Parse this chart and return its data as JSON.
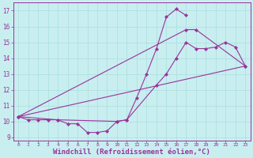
{
  "bg_color": "#c8eef0",
  "grid_color": "#aadddd",
  "line_color": "#993399",
  "curve1_x": [
    0,
    1,
    2,
    3,
    4,
    5,
    6,
    7,
    8,
    9,
    10,
    11,
    12,
    13,
    14,
    15,
    16,
    17
  ],
  "curve1_y": [
    10.3,
    10.1,
    10.1,
    10.1,
    10.1,
    9.85,
    9.85,
    9.3,
    9.3,
    9.4,
    10.0,
    10.1,
    11.5,
    13.0,
    14.6,
    16.6,
    17.1,
    16.7
  ],
  "curve2_x": [
    0,
    23
  ],
  "curve2_y": [
    10.3,
    13.5
  ],
  "curve3_x": [
    0,
    4,
    10,
    11,
    14,
    15,
    16,
    17,
    18,
    19,
    20,
    21,
    22,
    23
  ],
  "curve3_y": [
    10.3,
    10.1,
    10.0,
    10.1,
    12.3,
    13.0,
    14.0,
    15.0,
    14.6,
    14.6,
    14.7,
    15.0,
    14.7,
    13.5
  ],
  "curve4_x": [
    0,
    17,
    18,
    23
  ],
  "curve4_y": [
    10.3,
    15.8,
    15.8,
    13.5
  ],
  "xlim": [
    -0.5,
    23.5
  ],
  "ylim": [
    8.8,
    17.5
  ],
  "xticks": [
    0,
    1,
    2,
    3,
    4,
    5,
    6,
    7,
    8,
    9,
    10,
    11,
    12,
    13,
    14,
    15,
    16,
    17,
    18,
    19,
    20,
    21,
    22,
    23
  ],
  "yticks": [
    9,
    10,
    11,
    12,
    13,
    14,
    15,
    16,
    17
  ],
  "xlabel": "Windchill (Refroidissement éolien,°C)"
}
